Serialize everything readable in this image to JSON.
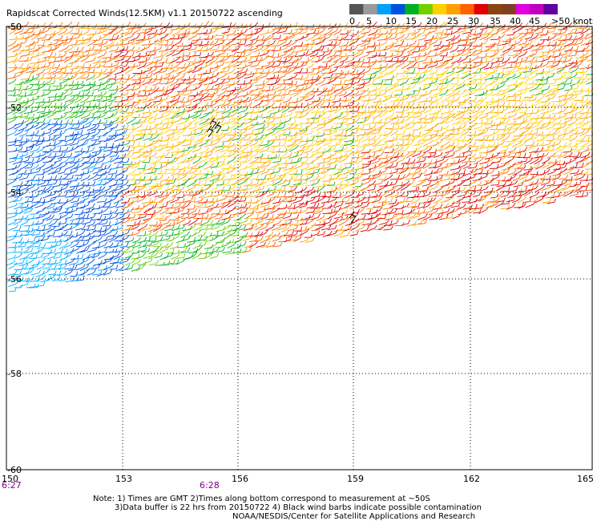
{
  "title": "Rapidscat Corrected Winds(12.5KM) v1.1 20150722 ascending",
  "legend": {
    "colors": [
      "#555555",
      "#9a9a9a",
      "#00a0ff",
      "#0050e0",
      "#00b020",
      "#70d000",
      "#ffd000",
      "#ffa000",
      "#ff6000",
      "#e00000",
      "#8b4513",
      "#804020",
      "#e000e0",
      "#c000c0",
      "#6000a0"
    ],
    "labels": [
      "0",
      "5",
      "10",
      "15",
      "20",
      "25",
      "30",
      "35",
      "40",
      "45",
      ">50 knots"
    ]
  },
  "y_axis": {
    "labels": [
      "-50",
      "-52",
      "-54",
      "-56",
      "-58",
      "-60"
    ]
  },
  "x_axis": {
    "labels": [
      "150",
      "153",
      "156",
      "159",
      "162",
      "165"
    ]
  },
  "times": [
    "6:27",
    "6:28"
  ],
  "notes": [
    "Note: 1) Times are GMT 2)Times along bottom correspond to measurement at ~50S",
    "3)Data buffer is 22 hrs from 20150722 4) Black wind barbs indicate possible contamination",
    "NOAA/NESDIS/Center for Satellite Applications and Research"
  ]
}
